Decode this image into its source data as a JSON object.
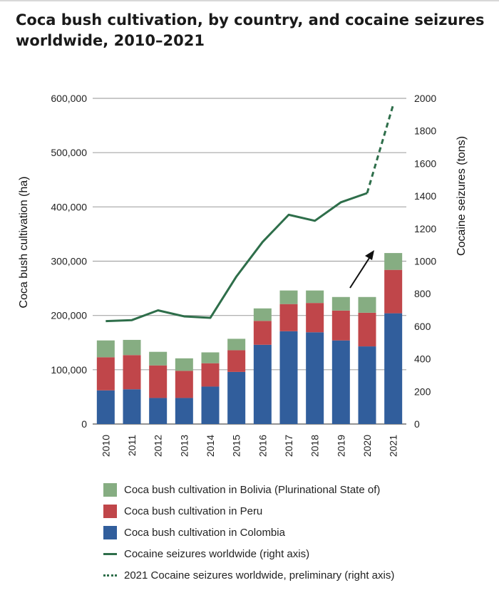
{
  "title": "Coca bush cultivation, by country, and cocaine seizures worldwide, 2010–2021",
  "colors": {
    "bolivia": "#86ad82",
    "peru": "#c0464a",
    "colombia": "#315e9c",
    "seizures": "#2e6e4a",
    "grid": "#a6a6a6",
    "arrow": "#111111"
  },
  "chart_data": {
    "type": "bar",
    "stacked": true,
    "categories": [
      "2010",
      "2011",
      "2012",
      "2013",
      "2014",
      "2015",
      "2016",
      "2017",
      "2018",
      "2019",
      "2020",
      "2021"
    ],
    "series": [
      {
        "name": "Coca bush cultivation in Colombia",
        "values": [
          62000,
          64000,
          48000,
          48000,
          69000,
          96000,
          146000,
          171000,
          169000,
          154000,
          143000,
          204000
        ]
      },
      {
        "name": "Coca bush cultivation in Peru",
        "values": [
          61000,
          63000,
          60000,
          50000,
          43000,
          40000,
          44000,
          50000,
          54000,
          55000,
          62000,
          80000
        ]
      },
      {
        "name": "Coca bush cultivation in Bolivia (Plurinational State of)",
        "values": [
          31000,
          28000,
          25000,
          23000,
          20000,
          21000,
          23000,
          25000,
          23000,
          25000,
          29000,
          31000
        ]
      }
    ],
    "line_series": [
      {
        "name": "Cocaine seizures worldwide (right axis)",
        "x": [
          "2010",
          "2011",
          "2012",
          "2013",
          "2014",
          "2015",
          "2016",
          "2017",
          "2018",
          "2019",
          "2020"
        ],
        "values": [
          632,
          638,
          698,
          661,
          652,
          906,
          1118,
          1285,
          1248,
          1362,
          1418
        ]
      },
      {
        "name": "2021 Cocaine seizures worldwide, preliminary (right axis)",
        "x": [
          "2020",
          "2021"
        ],
        "values": [
          1418,
          1962
        ]
      }
    ],
    "ylabel": "Coca bush cultivation (ha)",
    "y2label": "Cocaine seizures (tons)",
    "ylim": [
      0,
      600000
    ],
    "y2lim": [
      0,
      2000
    ],
    "yticks": [
      "0",
      "100,000",
      "200,000",
      "300,000",
      "400,000",
      "500,000",
      "600,000"
    ],
    "y2ticks": [
      "0",
      "200",
      "400",
      "600",
      "800",
      "1000",
      "1200",
      "1400",
      "1600",
      "1800",
      "2000"
    ],
    "grid": true,
    "legend_position": "bottom"
  },
  "legend": [
    {
      "label": "Coca bush cultivation in Bolivia (Plurinational State of)",
      "kind": "box",
      "color": "#86ad82"
    },
    {
      "label": "Coca bush cultivation in Peru",
      "kind": "box",
      "color": "#c0464a"
    },
    {
      "label": "Coca bush cultivation in Colombia",
      "kind": "box",
      "color": "#315e9c"
    },
    {
      "label": "Cocaine seizures worldwide (right axis)",
      "kind": "line",
      "color": "#2e6e4a"
    },
    {
      "label": "2021 Cocaine seizures worldwide, preliminary (right axis)",
      "kind": "dotted",
      "color": "#2e6e4a"
    }
  ]
}
